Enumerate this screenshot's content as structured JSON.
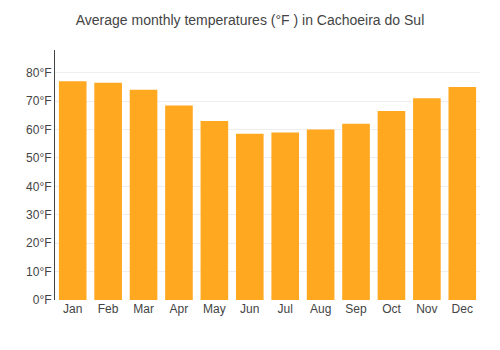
{
  "chart_data": {
    "type": "bar",
    "title": "Average monthly temperatures (°F ) in Cachoeira do Sul",
    "categories": [
      "Jan",
      "Feb",
      "Mar",
      "Apr",
      "May",
      "Jun",
      "Jul",
      "Aug",
      "Sep",
      "Oct",
      "Nov",
      "Dec"
    ],
    "values": [
      77,
      76.5,
      74,
      68.5,
      63,
      58.5,
      59,
      60,
      62,
      66.5,
      71,
      75
    ],
    "color": "#FFA820",
    "ylim": [
      0,
      88
    ],
    "yticks": [
      {
        "value": 0,
        "label": "0°F"
      },
      {
        "value": 10,
        "label": "10°F"
      },
      {
        "value": 20,
        "label": "20°F"
      },
      {
        "value": 30,
        "label": "30°F"
      },
      {
        "value": 40,
        "label": "40°F"
      },
      {
        "value": 50,
        "label": "50°F"
      },
      {
        "value": 60,
        "label": "60°F"
      },
      {
        "value": 70,
        "label": "70°F"
      },
      {
        "value": 80,
        "label": "80°F"
      }
    ],
    "grid": true
  }
}
